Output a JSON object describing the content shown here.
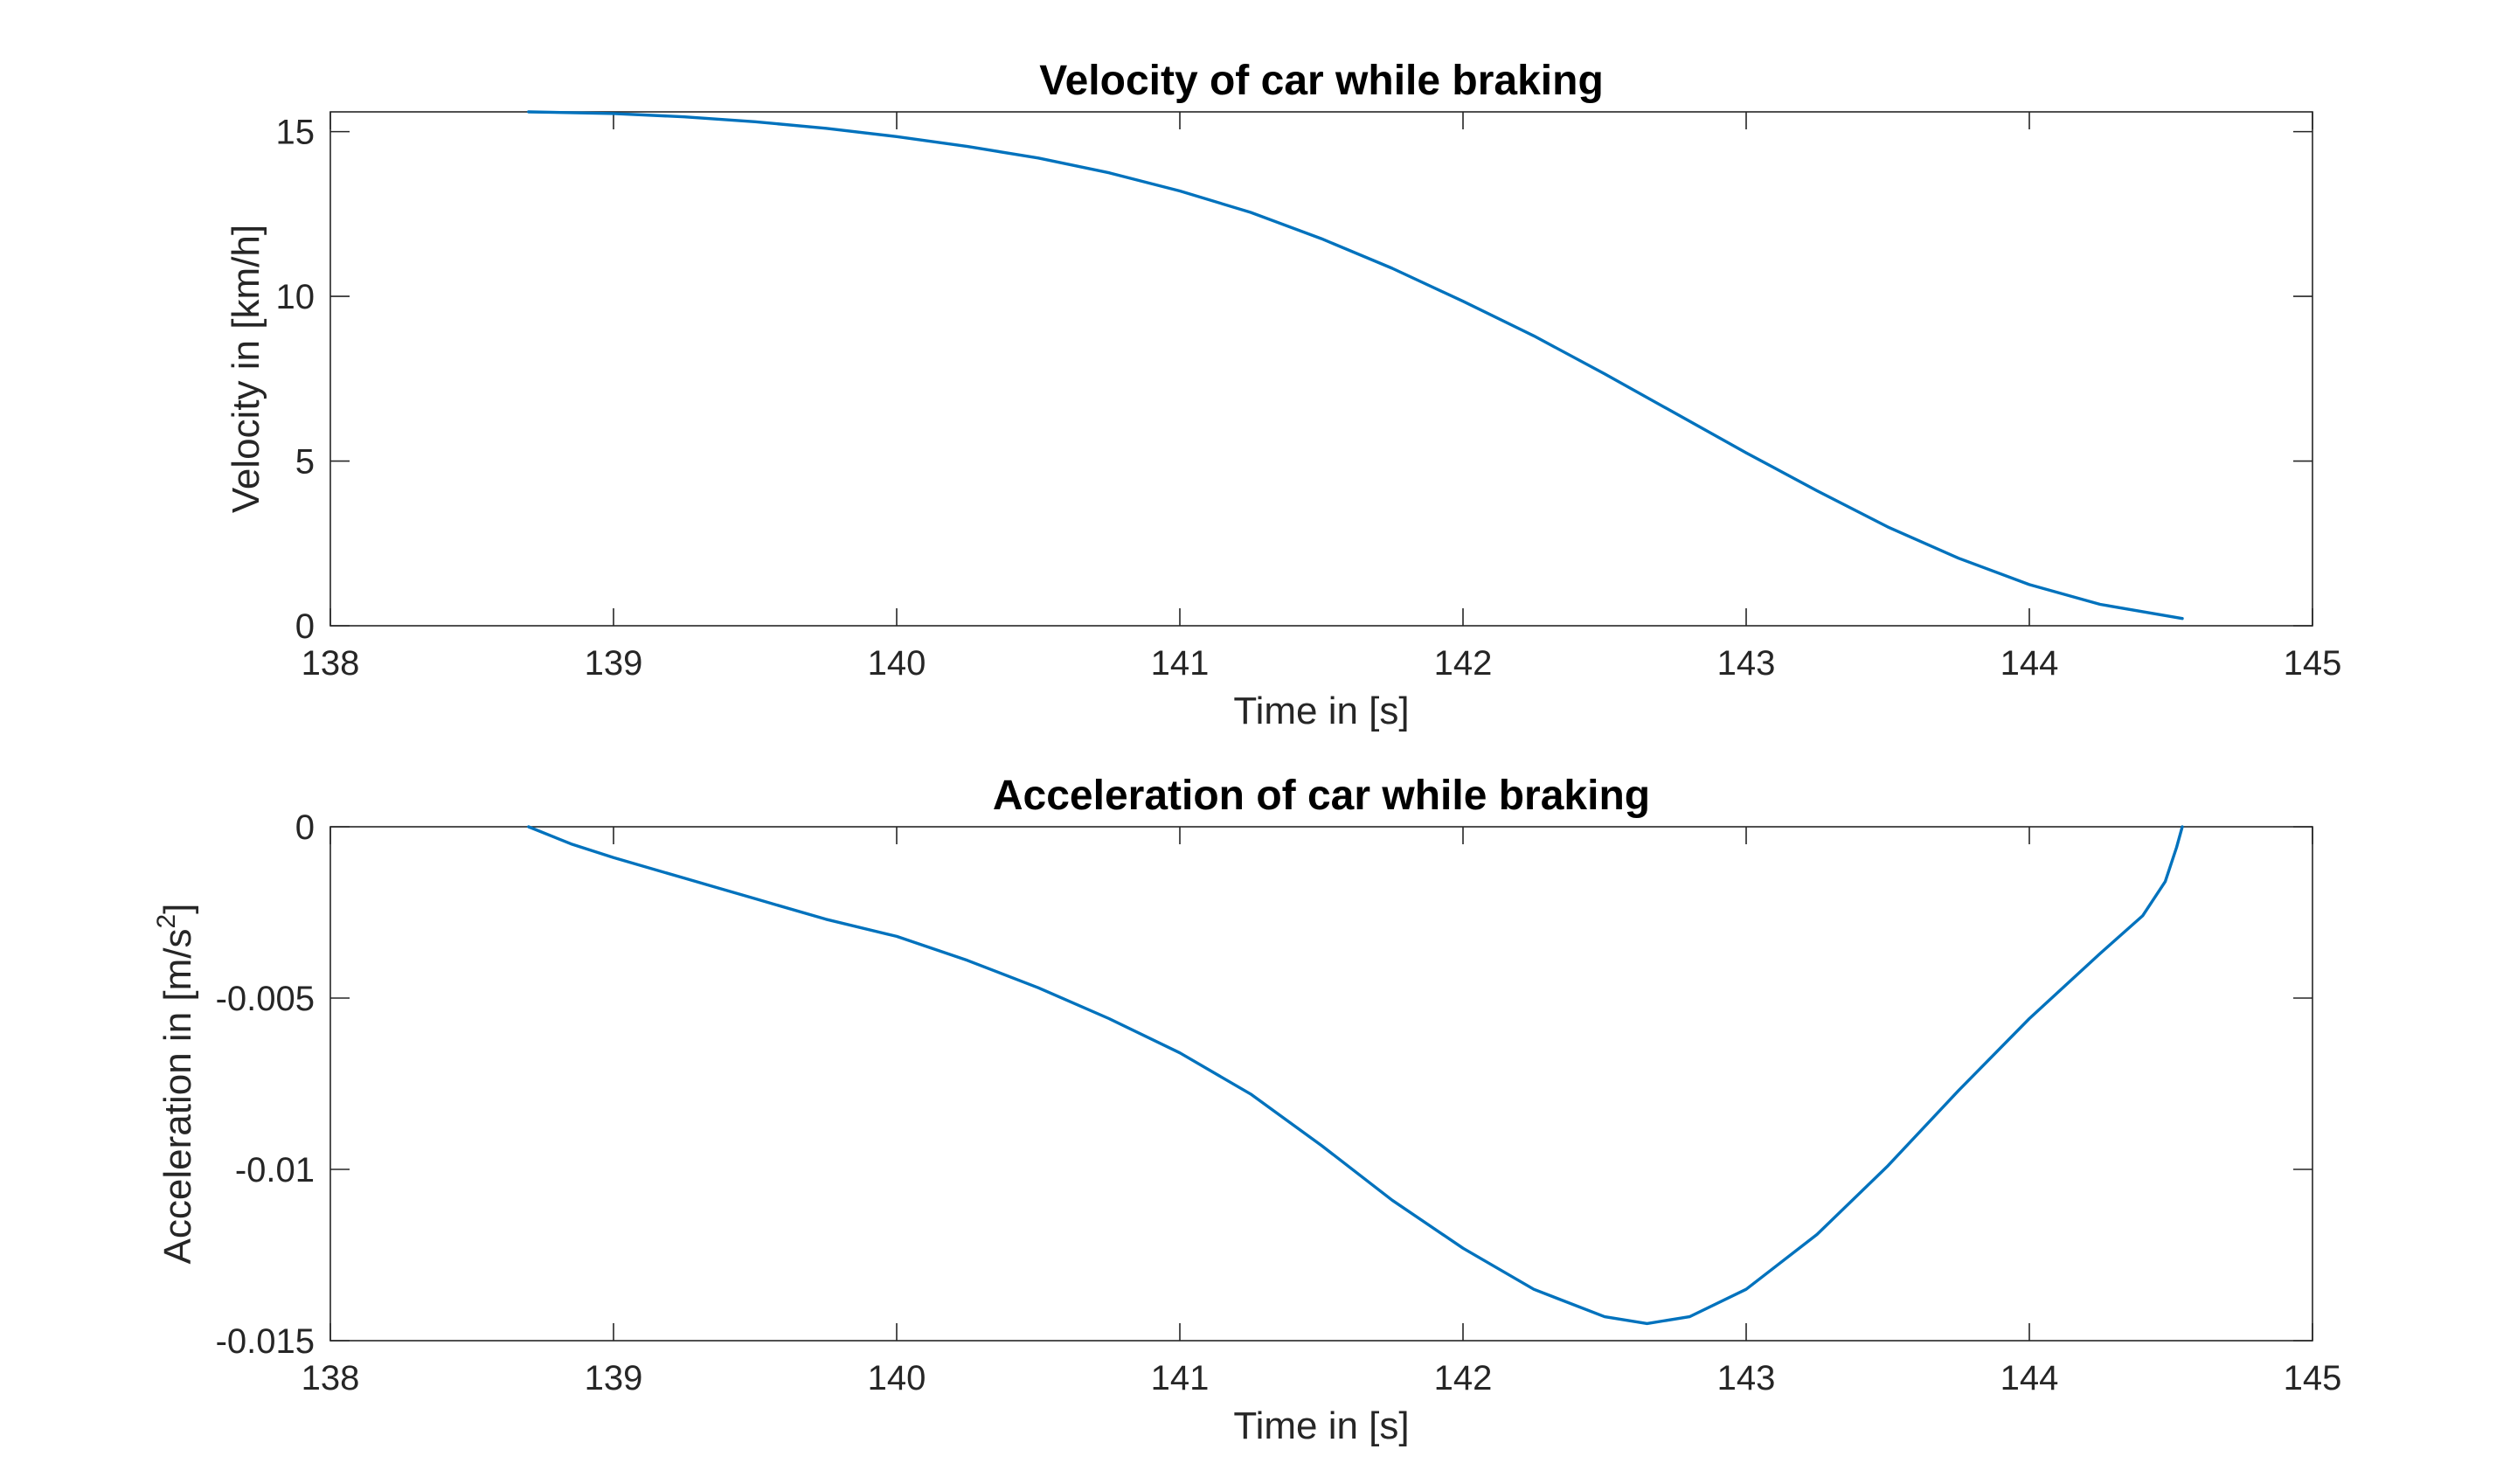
{
  "colors": {
    "series": "#0072BD",
    "axis": "#262626",
    "background": "#ffffff"
  },
  "chart_data": [
    {
      "type": "line",
      "title": "Velocity of car while braking",
      "xlabel": "Time in [s]",
      "ylabel": "Velocity in [km/h]",
      "xlim": [
        138,
        145
      ],
      "ylim": [
        0,
        15.6
      ],
      "xticks": [
        138,
        139,
        140,
        141,
        142,
        143,
        144,
        145
      ],
      "xtick_labels": [
        "138",
        "139",
        "140",
        "141",
        "142",
        "143",
        "144",
        "145"
      ],
      "yticks": [
        0,
        5,
        10,
        15
      ],
      "ytick_labels": [
        "0",
        "5",
        "10",
        "15"
      ],
      "grid": false,
      "series": [
        {
          "x": [
            138.7,
            139.0,
            139.25,
            139.5,
            139.75,
            140.0,
            140.25,
            140.5,
            140.75,
            141.0,
            141.25,
            141.5,
            141.75,
            142.0,
            142.25,
            142.5,
            142.75,
            143.0,
            143.25,
            143.5,
            143.75,
            144.0,
            144.25,
            144.54
          ],
          "y": [
            15.6,
            15.55,
            15.45,
            15.3,
            15.1,
            14.85,
            14.55,
            14.2,
            13.75,
            13.2,
            12.55,
            11.75,
            10.85,
            9.85,
            8.8,
            7.65,
            6.45,
            5.25,
            4.1,
            3.0,
            2.05,
            1.25,
            0.65,
            0.22
          ]
        }
      ]
    },
    {
      "type": "line",
      "title": "Acceleration of car while braking",
      "xlabel": "Time in [s]",
      "ylabel": "Acceleration in [m/s",
      "ylabel_sup": "2",
      "ylabel_end": "]",
      "xlim": [
        138,
        145
      ],
      "ylim": [
        -0.015,
        0
      ],
      "xticks": [
        138,
        139,
        140,
        141,
        142,
        143,
        144,
        145
      ],
      "xtick_labels": [
        "138",
        "139",
        "140",
        "141",
        "142",
        "143",
        "144",
        "145"
      ],
      "yticks": [
        -0.015,
        -0.01,
        -0.005,
        0
      ],
      "ytick_labels": [
        "-0.015",
        "-0.01",
        "-0.005",
        "0"
      ],
      "grid": false,
      "series": [
        {
          "x": [
            138.7,
            138.85,
            139.0,
            139.25,
            139.5,
            139.75,
            140.0,
            140.25,
            140.5,
            140.75,
            141.0,
            141.25,
            141.5,
            141.75,
            142.0,
            142.25,
            142.5,
            142.65,
            142.8,
            143.0,
            143.25,
            143.5,
            143.75,
            144.0,
            144.25,
            144.4,
            144.48,
            144.52,
            144.54
          ],
          "y": [
            0,
            -0.0005,
            -0.0009,
            -0.0015,
            -0.0021,
            -0.0027,
            -0.0032,
            -0.0039,
            -0.0047,
            -0.0056,
            -0.0066,
            -0.0078,
            -0.0093,
            -0.0109,
            -0.0123,
            -0.0135,
            -0.0143,
            -0.0145,
            -0.0143,
            -0.0135,
            -0.0119,
            -0.0099,
            -0.0077,
            -0.0056,
            -0.0037,
            -0.0026,
            -0.0016,
            -0.0006,
            0
          ]
        }
      ]
    }
  ]
}
